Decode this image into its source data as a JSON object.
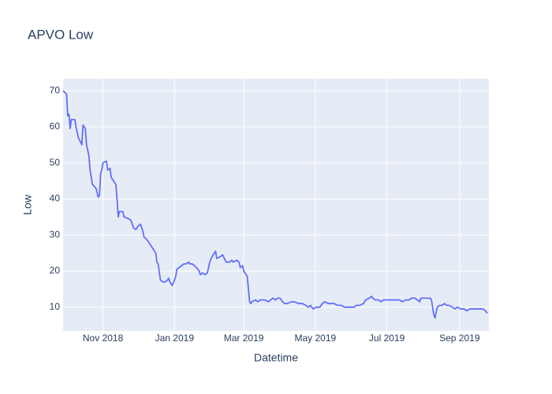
{
  "chart_data": {
    "type": "line",
    "title": "APVO Low",
    "x_label": "Datetime",
    "y_label": "Low",
    "color": "#636efa",
    "grid": true,
    "x": [
      "2018-09-28",
      "2018-10-01",
      "2018-10-02",
      "2018-10-03",
      "2018-10-04",
      "2018-10-05",
      "2018-10-08",
      "2018-10-09",
      "2018-10-11",
      "2018-10-14",
      "2018-10-15",
      "2018-10-17",
      "2018-10-18",
      "2018-10-20",
      "2018-10-21",
      "2018-10-23",
      "2018-10-26",
      "2018-10-28",
      "2018-10-29",
      "2018-10-30",
      "2018-10-31",
      "2018-11-01",
      "2018-11-04",
      "2018-11-05",
      "2018-11-07",
      "2018-11-08",
      "2018-11-11",
      "2018-11-12",
      "2018-11-13",
      "2018-11-14",
      "2018-11-15",
      "2018-11-18",
      "2018-11-19",
      "2018-11-23",
      "2018-11-25",
      "2018-11-27",
      "2018-11-29",
      "2018-12-01",
      "2018-12-03",
      "2018-12-05",
      "2018-12-06",
      "2018-12-09",
      "2018-12-11",
      "2018-12-12",
      "2018-12-13",
      "2018-12-16",
      "2018-12-17",
      "2018-12-18",
      "2018-12-20",
      "2018-12-22",
      "2018-12-24",
      "2018-12-26",
      "2018-12-27",
      "2018-12-28",
      "2018-12-30",
      "2019-01-01",
      "2019-01-02",
      "2019-01-03",
      "2019-01-05",
      "2019-01-07",
      "2019-01-09",
      "2019-01-11",
      "2019-01-13",
      "2019-01-14",
      "2019-01-16",
      "2019-01-18",
      "2019-01-21",
      "2019-01-22",
      "2019-01-23",
      "2019-01-25",
      "2019-01-27",
      "2019-01-29",
      "2019-01-31",
      "2019-02-02",
      "2019-02-05",
      "2019-02-06",
      "2019-02-09",
      "2019-02-11",
      "2019-02-14",
      "2019-02-17",
      "2019-02-19",
      "2019-02-20",
      "2019-02-23",
      "2019-02-25",
      "2019-02-26",
      "2019-02-28",
      "2019-03-01",
      "2019-03-04",
      "2019-03-05",
      "2019-03-06",
      "2019-03-07",
      "2019-03-08",
      "2019-03-11",
      "2019-03-13",
      "2019-03-15",
      "2019-03-19",
      "2019-03-22",
      "2019-03-24",
      "2019-03-26",
      "2019-03-28",
      "2019-03-30",
      "2019-04-01",
      "2019-04-03",
      "2019-04-05",
      "2019-04-07",
      "2019-04-11",
      "2019-04-13",
      "2019-04-17",
      "2019-04-20",
      "2019-04-23",
      "2019-04-25",
      "2019-04-27",
      "2019-04-29",
      "2019-05-02",
      "2019-05-05",
      "2019-05-07",
      "2019-05-09",
      "2019-05-12",
      "2019-05-15",
      "2019-05-17",
      "2019-05-20",
      "2019-05-23",
      "2019-05-26",
      "2019-05-28",
      "2019-05-31",
      "2019-06-03",
      "2019-06-05",
      "2019-06-08",
      "2019-06-11",
      "2019-06-13",
      "2019-06-16",
      "2019-06-18",
      "2019-06-19",
      "2019-06-21",
      "2019-06-24",
      "2019-06-26",
      "2019-06-28",
      "2019-07-01",
      "2019-07-03",
      "2019-07-06",
      "2019-07-09",
      "2019-07-12",
      "2019-07-14",
      "2019-07-17",
      "2019-07-20",
      "2019-07-22",
      "2019-07-25",
      "2019-07-27",
      "2019-07-29",
      "2019-07-30",
      "2019-08-02",
      "2019-08-05",
      "2019-08-07",
      "2019-08-08",
      "2019-08-09",
      "2019-08-10",
      "2019-08-11",
      "2019-08-13",
      "2019-08-15",
      "2019-08-17",
      "2019-08-19",
      "2019-08-21",
      "2019-08-23",
      "2019-08-26",
      "2019-08-28",
      "2019-08-30",
      "2019-09-02",
      "2019-09-05",
      "2019-09-07",
      "2019-09-10",
      "2019-09-13",
      "2019-09-15",
      "2019-09-18",
      "2019-09-21",
      "2019-09-23",
      "2019-09-24",
      "2019-09-25"
    ],
    "values": [
      70,
      69,
      63,
      63.5,
      59.5,
      62,
      62,
      60,
      57,
      55,
      60.5,
      59.5,
      55,
      52,
      48,
      44,
      43,
      40.5,
      41,
      47,
      48,
      50,
      50.5,
      48,
      48.5,
      46,
      44.5,
      44,
      40,
      35,
      36.5,
      36.5,
      35,
      34.5,
      34,
      32,
      31.5,
      32.5,
      33,
      31,
      29.5,
      28.5,
      27.5,
      27,
      26.5,
      25,
      22.5,
      22,
      17.5,
      17,
      17,
      17.5,
      18,
      17,
      16,
      17.5,
      18.5,
      20.5,
      21,
      21.5,
      22,
      22,
      22.5,
      22,
      22,
      21.5,
      20.5,
      20,
      19,
      19.5,
      19,
      19.5,
      22.5,
      24,
      25.5,
      23.5,
      24,
      24.5,
      22.5,
      22.5,
      23,
      22.5,
      23,
      22.5,
      21,
      21.5,
      20,
      18.5,
      15,
      11.5,
      11,
      11.5,
      12,
      11.5,
      12,
      12,
      11.5,
      12,
      12.5,
      12,
      12.5,
      12.5,
      11.5,
      11,
      11,
      11.5,
      11.5,
      11,
      11,
      10.5,
      10,
      10.5,
      9.5,
      10,
      10,
      11,
      11.5,
      11,
      11,
      11,
      10.5,
      10.5,
      10,
      10,
      10,
      10,
      10.5,
      10.5,
      11,
      12,
      12.5,
      13,
      12.5,
      12,
      12,
      11.5,
      12,
      12,
      12,
      12,
      12,
      12,
      11.5,
      12,
      12,
      12.5,
      12.5,
      12,
      11.5,
      12.5,
      12.5,
      12.5,
      12.5,
      12,
      10,
      8,
      7,
      10,
      10.5,
      10.5,
      11,
      10.5,
      10.5,
      10,
      9.5,
      10,
      9.5,
      9.5,
      9,
      9.5,
      9.5,
      9.5,
      9.5,
      9.5,
      9,
      8.5,
      8.5
    ],
    "xlim": [
      "2018-09-28",
      "2019-09-26"
    ],
    "xticks": [
      {
        "value": "2018-11-01",
        "label": "Nov 2018"
      },
      {
        "value": "2019-01-01",
        "label": "Jan 2019"
      },
      {
        "value": "2019-03-01",
        "label": "Mar 2019"
      },
      {
        "value": "2019-05-01",
        "label": "May 2019"
      },
      {
        "value": "2019-07-01",
        "label": "Jul 2019"
      },
      {
        "value": "2019-09-01",
        "label": "Sep 2019"
      }
    ],
    "ylim": [
      3.4,
      73.3
    ],
    "yticks": [
      10,
      20,
      30,
      40,
      50,
      60,
      70
    ]
  }
}
